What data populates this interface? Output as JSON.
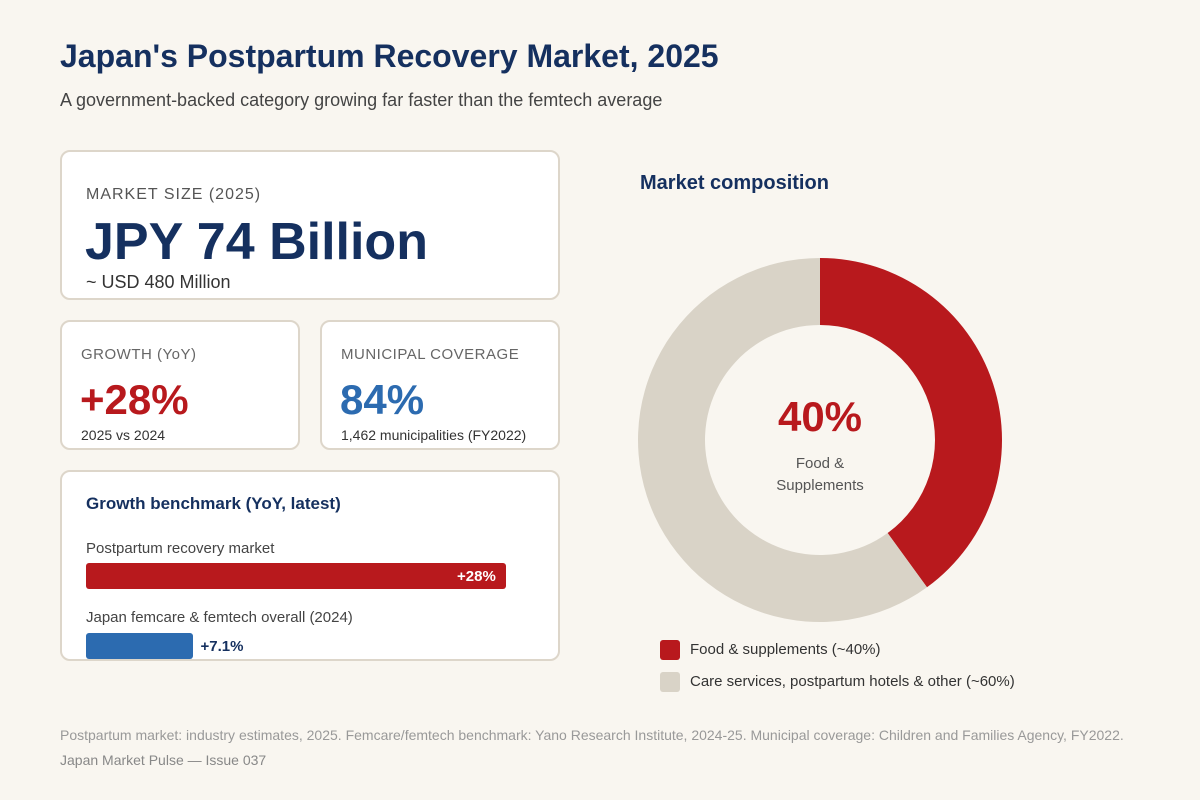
{
  "header": {
    "title": "Japan's Postpartum Recovery Market, 2025",
    "subtitle": "A government-backed category growing far faster than the femtech average"
  },
  "kpis": {
    "market_size": {
      "label": "MARKET SIZE (2025)",
      "value": "JPY 74 Billion",
      "note": "~ USD 480 Million"
    },
    "growth": {
      "label": "GROWTH (YoY)",
      "value": "+28%",
      "note": "2025 vs 2024"
    },
    "coverage": {
      "label": "MUNICIPAL COVERAGE",
      "value": "84%",
      "note": "1,462 municipalities (FY2022)"
    }
  },
  "colors": {
    "navy": "#15305f",
    "red": "#b8191d",
    "blue": "#2c6bb0",
    "beige": "#d9d3c7",
    "background": "#f9f6f0"
  },
  "chart_data": [
    {
      "type": "bar",
      "title": "Growth benchmark (YoY, latest)",
      "orientation": "horizontal",
      "unit": "%",
      "categories": [
        "Postpartum recovery market",
        "Japan femcare & femtech overall (2024)"
      ],
      "values": [
        28,
        7.1
      ],
      "value_labels": [
        "+28%",
        "+7.1%"
      ],
      "colors": [
        "#b8191d",
        "#2c6bb0"
      ],
      "xlim": [
        0,
        28
      ]
    },
    {
      "type": "pie",
      "title": "Market composition",
      "donut": true,
      "labels": [
        "Food & supplements (~40%)",
        "Care services, postpartum hotels & other (~60%)"
      ],
      "values": [
        40,
        60
      ],
      "colors": [
        "#b8191d",
        "#d9d3c7"
      ],
      "center_value": "40%",
      "center_label": [
        "Food &",
        "Supplements"
      ],
      "legend_position": "bottom"
    }
  ],
  "footer": {
    "source": "Postpartum market: industry estimates, 2025. Femcare/femtech benchmark: Yano Research Institute, 2024-25. Municipal coverage: Children and Families Agency, FY2022.",
    "issue": "Japan Market Pulse — Issue 037"
  }
}
